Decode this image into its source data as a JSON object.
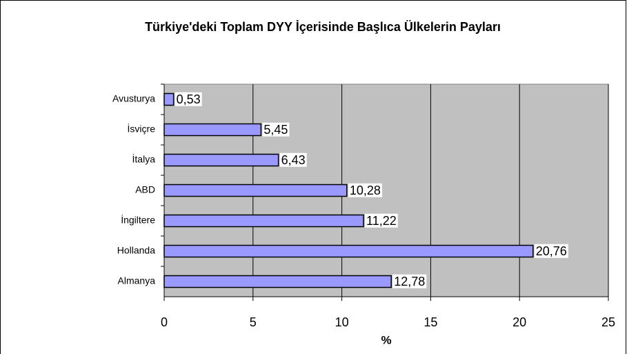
{
  "chart_data": {
    "type": "bar",
    "orientation": "horizontal",
    "title": "Türkiye'deki Toplam DYY İçerisinde Başlıca Ülkelerin Payları",
    "x_label": "%",
    "categories": [
      "Avusturya",
      "İsviçre",
      "İtalya",
      "ABD",
      "İngiltere",
      "Hollanda",
      "Almanya"
    ],
    "values": [
      0.53,
      5.45,
      6.43,
      10.28,
      11.22,
      20.76,
      12.78
    ],
    "value_labels": [
      "0,53",
      "5,45",
      "6,43",
      "10,28",
      "11,22",
      "20,76",
      "12,78"
    ],
    "color": "#9999ff",
    "xlim": [
      0,
      25
    ],
    "xticks": [
      0,
      5,
      10,
      15,
      20,
      25
    ],
    "grid": true
  }
}
